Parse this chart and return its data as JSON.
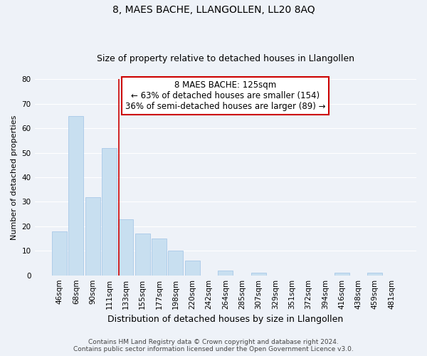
{
  "title": "8, MAES BACHE, LLANGOLLEN, LL20 8AQ",
  "subtitle": "Size of property relative to detached houses in Llangollen",
  "xlabel": "Distribution of detached houses by size in Llangollen",
  "ylabel": "Number of detached properties",
  "categories": [
    "46sqm",
    "68sqm",
    "90sqm",
    "111sqm",
    "133sqm",
    "155sqm",
    "177sqm",
    "198sqm",
    "220sqm",
    "242sqm",
    "264sqm",
    "285sqm",
    "307sqm",
    "329sqm",
    "351sqm",
    "372sqm",
    "394sqm",
    "416sqm",
    "438sqm",
    "459sqm",
    "481sqm"
  ],
  "values": [
    18,
    65,
    32,
    52,
    23,
    17,
    15,
    10,
    6,
    0,
    2,
    0,
    1,
    0,
    0,
    0,
    0,
    1,
    0,
    1,
    0
  ],
  "bar_color": "#c8dff0",
  "bar_edge_color": "#a8c8e8",
  "annotation_lines": [
    "8 MAES BACHE: 125sqm",
    "← 63% of detached houses are smaller (154)",
    "36% of semi-detached houses are larger (89) →"
  ],
  "annotation_box_color": "#ffffff",
  "annotation_box_edge": "#cc0000",
  "red_line_color": "#cc0000",
  "footer_line1": "Contains HM Land Registry data © Crown copyright and database right 2024.",
  "footer_line2": "Contains public sector information licensed under the Open Government Licence v3.0.",
  "ylim": [
    0,
    80
  ],
  "yticks": [
    0,
    10,
    20,
    30,
    40,
    50,
    60,
    70,
    80
  ],
  "bg_color": "#eef2f8",
  "grid_color": "#ffffff",
  "title_fontsize": 10,
  "subtitle_fontsize": 9,
  "xlabel_fontsize": 9,
  "ylabel_fontsize": 8,
  "tick_fontsize": 7.5,
  "annotation_fontsize": 8.5,
  "footer_fontsize": 6.5,
  "red_line_x": 3.57
}
